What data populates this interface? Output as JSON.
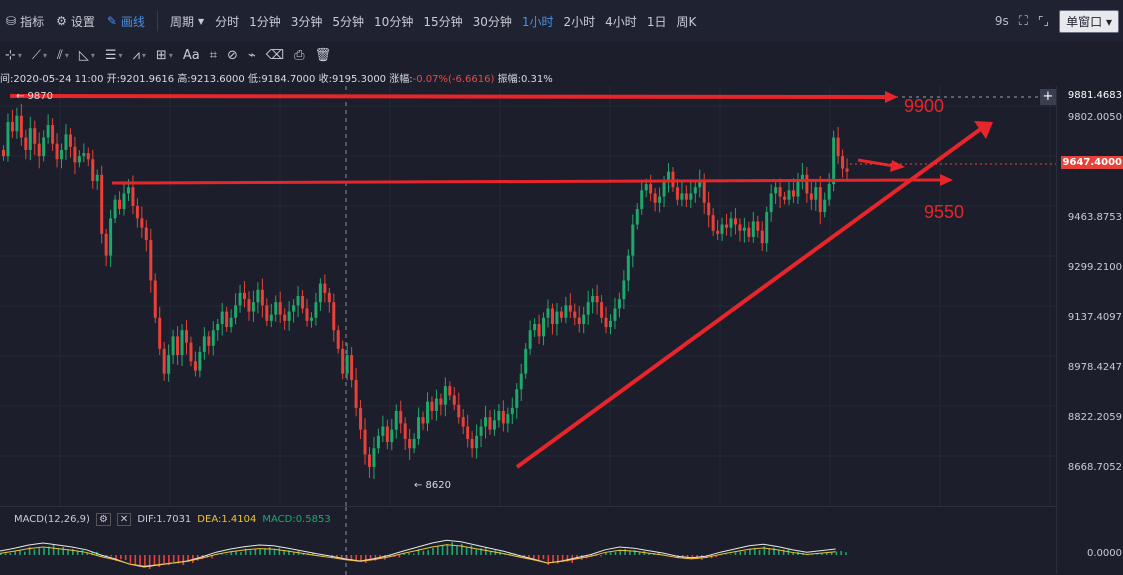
{
  "toolbar": {
    "indicator_label": "指标",
    "settings_label": "设置",
    "draw_label": "画线",
    "period_label": "周期",
    "periods": [
      "分时",
      "1分钟",
      "3分钟",
      "5分钟",
      "10分钟",
      "15分钟",
      "30分钟",
      "1小时",
      "2小时",
      "4小时",
      "1日",
      "周K"
    ],
    "active_period": "1小时",
    "seconds": "9s",
    "window_mode": "单窗口"
  },
  "draw_tools": {
    "text_tool": "Aa"
  },
  "info": {
    "time": "间:2020-05-24 11:00",
    "open": "开:9201.9616",
    "high": "高:9213.6000",
    "low": "低:9184.7000",
    "close": "收:9195.3000",
    "change_label": "涨幅:",
    "change": "-0.07%(-6.6616)",
    "amplitude": "振幅:0.31%"
  },
  "axis": {
    "ticks": [
      "9802.0050",
      "9647.4000",
      "9463.8753",
      "9299.2100",
      "9137.4097",
      "8978.4247",
      "8822.2059",
      "8668.7052"
    ],
    "top_price": "9881.4683",
    "current_price": "9647.4000",
    "macd_zero": "0.0000"
  },
  "markers": {
    "high": "← 9870",
    "low": "← 8620"
  },
  "annotations": {
    "upper": "9900",
    "lower": "9550"
  },
  "macd": {
    "label": "MACD(12,26,9)",
    "dif": "DIF:1.7031",
    "dea": "DEA:1.4104",
    "macd": "MACD:0.5853"
  },
  "colors": {
    "up": "#1fa86b",
    "down": "#e8413a",
    "drawing": "#e8252a",
    "accent": "#4a8fe7",
    "dea": "#f1c232"
  },
  "chart_data": {
    "type": "candlestick",
    "ylim": [
      8600,
      9900
    ],
    "closes": [
      9700,
      9810,
      9780,
      9830,
      9760,
      9720,
      9790,
      9740,
      9700,
      9760,
      9800,
      9740,
      9690,
      9720,
      9770,
      9730,
      9680,
      9700,
      9710,
      9690,
      9620,
      9640,
      9450,
      9380,
      9500,
      9560,
      9530,
      9580,
      9600,
      9540,
      9500,
      9470,
      9430,
      9300,
      9180,
      9080,
      9000,
      9060,
      9120,
      9060,
      9140,
      9100,
      9040,
      9010,
      9070,
      9120,
      9090,
      9140,
      9160,
      9200,
      9150,
      9180,
      9220,
      9260,
      9240,
      9200,
      9230,
      9270,
      9220,
      9170,
      9190,
      9230,
      9190,
      9170,
      9200,
      9220,
      9250,
      9210,
      9170,
      9180,
      9230,
      9290,
      9260,
      9230,
      9140,
      9080,
      9000,
      9060,
      8980,
      8890,
      8820,
      8740,
      8700,
      8760,
      8800,
      8830,
      8780,
      8820,
      8880,
      8840,
      8790,
      8760,
      8790,
      8860,
      8840,
      8910,
      8880,
      8920,
      8900,
      8960,
      8930,
      8900,
      8860,
      8830,
      8790,
      8760,
      8800,
      8830,
      8860,
      8820,
      8850,
      8880,
      8840,
      8870,
      8890,
      8950,
      9000,
      9080,
      9140,
      9160,
      9120,
      9180,
      9210,
      9160,
      9200,
      9180,
      9220,
      9200,
      9180,
      9160,
      9190,
      9230,
      9250,
      9230,
      9180,
      9150,
      9170,
      9210,
      9240,
      9300,
      9380,
      9480,
      9530,
      9590,
      9610,
      9580,
      9550,
      9570,
      9620,
      9650,
      9600,
      9560,
      9580,
      9560,
      9580,
      9600,
      9620,
      9550,
      9510,
      9460,
      9450,
      9480,
      9470,
      9500,
      9480,
      9460,
      9470,
      9440,
      9490,
      9460,
      9420,
      9520,
      9580,
      9600,
      9570,
      9560,
      9590,
      9570,
      9620,
      9640,
      9580,
      9560,
      9600,
      9520,
      9560,
      9610,
      9760,
      9700,
      9660,
      9650
    ],
    "macd_hist": [
      0.5,
      1.2,
      2,
      2.5,
      2,
      1.5,
      0.8,
      -0.5,
      -1.5,
      -2.8,
      -3.5,
      -3,
      -2.5,
      -2,
      -1,
      0.2,
      1,
      1.6,
      2,
      1.8,
      1.2,
      0.5,
      -0.2,
      -0.8,
      -1.5,
      -2,
      -1.4,
      -0.6,
      0.5,
      1.5,
      2.5,
      3.2,
      2.8,
      2,
      1.2,
      0.4,
      -0.6,
      -1.5,
      -2.5,
      -2,
      -1.2,
      -0.4,
      0.8,
      1.5,
      1.2,
      0.6,
      0,
      -0.8,
      -1.2,
      -0.8,
      0.2,
      1,
      1.8,
      2.2,
      1.6,
      0.8,
      0.2,
      0.6,
      1
    ]
  }
}
